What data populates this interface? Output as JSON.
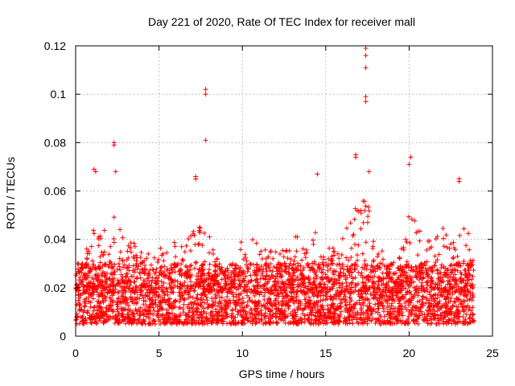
{
  "chart_data": {
    "type": "scatter",
    "title": "Day 221 of 2020, Rate Of TEC Index for receiver mall",
    "xlabel": "GPS time / hours",
    "ylabel": "ROTI / TECUs",
    "xlim": [
      0,
      25
    ],
    "ylim": [
      0,
      0.12
    ],
    "x_ticks": [
      0,
      5,
      10,
      15,
      20,
      25
    ],
    "x_tick_labels": [
      "0",
      "5",
      "10",
      "15",
      "20",
      "25"
    ],
    "y_ticks": [
      0,
      0.02,
      0.04,
      0.06,
      0.08,
      0.1,
      0.12
    ],
    "y_tick_labels": [
      "0",
      "0.02",
      "0.04",
      "0.06",
      "0.08",
      "0.1",
      "0.12"
    ],
    "grid": true,
    "marker": "+",
    "series": [
      {
        "name": "ROTI",
        "color": "#ff0000",
        "data_extent": [
          0.0,
          23.9
        ],
        "typical_range": [
          0.005,
          0.03
        ],
        "peaks": [
          {
            "x": 1.1,
            "y": 0.069
          },
          {
            "x": 1.2,
            "y": 0.068
          },
          {
            "x": 2.3,
            "y": 0.08
          },
          {
            "x": 2.3,
            "y": 0.079
          },
          {
            "x": 2.4,
            "y": 0.068
          },
          {
            "x": 7.2,
            "y": 0.066
          },
          {
            "x": 7.2,
            "y": 0.065
          },
          {
            "x": 7.8,
            "y": 0.102
          },
          {
            "x": 7.8,
            "y": 0.1
          },
          {
            "x": 7.8,
            "y": 0.081
          },
          {
            "x": 14.5,
            "y": 0.067
          },
          {
            "x": 16.8,
            "y": 0.075
          },
          {
            "x": 16.8,
            "y": 0.074
          },
          {
            "x": 17.4,
            "y": 0.119
          },
          {
            "x": 17.4,
            "y": 0.116
          },
          {
            "x": 17.4,
            "y": 0.111
          },
          {
            "x": 17.4,
            "y": 0.099
          },
          {
            "x": 17.4,
            "y": 0.097
          },
          {
            "x": 17.6,
            "y": 0.068
          },
          {
            "x": 20.1,
            "y": 0.074
          },
          {
            "x": 20.0,
            "y": 0.071
          },
          {
            "x": 23.0,
            "y": 0.065
          },
          {
            "x": 23.0,
            "y": 0.064
          }
        ],
        "activity_envelope": [
          {
            "x": 0.0,
            "y": 0.025
          },
          {
            "x": 0.5,
            "y": 0.032
          },
          {
            "x": 1.0,
            "y": 0.045
          },
          {
            "x": 1.5,
            "y": 0.042
          },
          {
            "x": 2.0,
            "y": 0.052
          },
          {
            "x": 2.5,
            "y": 0.048
          },
          {
            "x": 3.0,
            "y": 0.038
          },
          {
            "x": 3.5,
            "y": 0.04
          },
          {
            "x": 4.0,
            "y": 0.036
          },
          {
            "x": 4.5,
            "y": 0.034
          },
          {
            "x": 5.0,
            "y": 0.038
          },
          {
            "x": 5.5,
            "y": 0.036
          },
          {
            "x": 6.0,
            "y": 0.04
          },
          {
            "x": 6.5,
            "y": 0.036
          },
          {
            "x": 7.0,
            "y": 0.047
          },
          {
            "x": 7.5,
            "y": 0.045
          },
          {
            "x": 8.0,
            "y": 0.042
          },
          {
            "x": 8.5,
            "y": 0.036
          },
          {
            "x": 9.0,
            "y": 0.025
          },
          {
            "x": 9.5,
            "y": 0.028
          },
          {
            "x": 10.0,
            "y": 0.045
          },
          {
            "x": 10.5,
            "y": 0.05
          },
          {
            "x": 11.0,
            "y": 0.04
          },
          {
            "x": 11.5,
            "y": 0.035
          },
          {
            "x": 12.0,
            "y": 0.04
          },
          {
            "x": 12.5,
            "y": 0.038
          },
          {
            "x": 13.0,
            "y": 0.042
          },
          {
            "x": 13.5,
            "y": 0.044
          },
          {
            "x": 14.0,
            "y": 0.04
          },
          {
            "x": 14.5,
            "y": 0.046
          },
          {
            "x": 15.0,
            "y": 0.04
          },
          {
            "x": 15.5,
            "y": 0.036
          },
          {
            "x": 16.0,
            "y": 0.04
          },
          {
            "x": 16.5,
            "y": 0.05
          },
          {
            "x": 17.0,
            "y": 0.055
          },
          {
            "x": 17.5,
            "y": 0.058
          },
          {
            "x": 18.0,
            "y": 0.045
          },
          {
            "x": 18.5,
            "y": 0.035
          },
          {
            "x": 19.0,
            "y": 0.03
          },
          {
            "x": 19.5,
            "y": 0.038
          },
          {
            "x": 20.0,
            "y": 0.055
          },
          {
            "x": 20.5,
            "y": 0.045
          },
          {
            "x": 21.0,
            "y": 0.04
          },
          {
            "x": 21.5,
            "y": 0.04
          },
          {
            "x": 22.0,
            "y": 0.045
          },
          {
            "x": 22.5,
            "y": 0.04
          },
          {
            "x": 23.0,
            "y": 0.048
          },
          {
            "x": 23.5,
            "y": 0.048
          },
          {
            "x": 23.9,
            "y": 0.03
          }
        ]
      }
    ]
  }
}
